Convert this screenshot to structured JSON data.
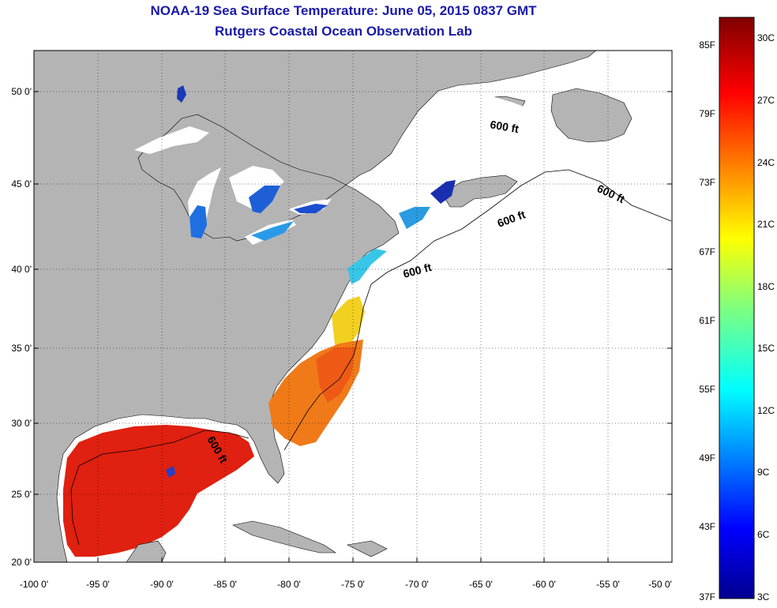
{
  "title": {
    "line1": "NOAA-19 Sea Surface Temperature:  June 05, 2015 0837 GMT",
    "line2": "Rutgers Coastal Ocean Observation Lab"
  },
  "map": {
    "lat_ticks": [
      "50 0'",
      "45 0'",
      "40 0'",
      "35 0'",
      "30 0'",
      "25 0'",
      "20 0'"
    ],
    "lon_ticks": [
      "-100 0'",
      "-95 0'",
      "-90 0'",
      "-85 0'",
      "-80 0'",
      "-75 0'",
      "-70 0'",
      "-65 0'",
      "-60 0'",
      "-55 0'",
      "-50 0'"
    ],
    "contour_label": "600 ft",
    "colors": {
      "land": "#b4b4b4",
      "cloud": "#ffffff",
      "warm": "#e02010",
      "outline": "#000000"
    }
  },
  "colorbar": {
    "fahrenheit": [
      "85F",
      "79F",
      "73F",
      "67F",
      "61F",
      "55F",
      "49F",
      "43F",
      "37F"
    ],
    "celsius": [
      "30C",
      "27C",
      "24C",
      "21C",
      "18C",
      "15C",
      "12C",
      "9C",
      "6C",
      "3C"
    ]
  }
}
